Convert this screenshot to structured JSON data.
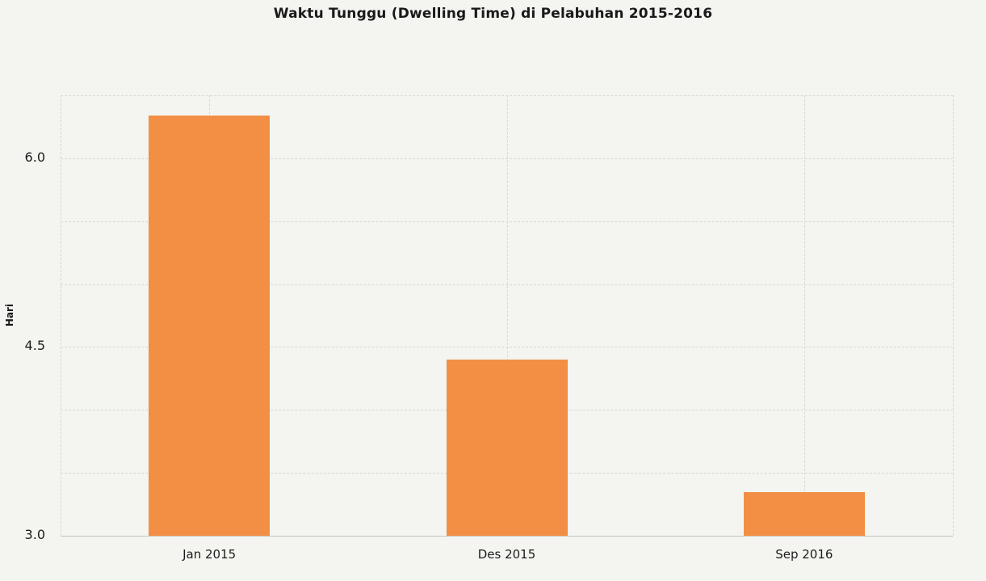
{
  "colors": {
    "background": "#F4F4F0",
    "bar": "#F28F44",
    "grid": "#D8D8D3",
    "baseline": "#C6C6C1",
    "text": "#1A1A1A"
  },
  "chart_data": {
    "type": "bar",
    "title": "Waktu Tunggu (Dwelling Time) di Pelabuhan 2015-2016",
    "xlabel": "",
    "ylabel": "Hari",
    "categories": [
      "Jan 2015",
      "Des 2015",
      "Sep 2016"
    ],
    "values": [
      6.34,
      4.4,
      3.35
    ],
    "ylim": [
      3.0,
      6.5
    ],
    "yticks": [
      3.0,
      4.5,
      6.0
    ],
    "ytick_labels": [
      "3.0",
      "4.5",
      "6.0"
    ],
    "grid": true,
    "grid_step": 0.5,
    "legend": false
  }
}
